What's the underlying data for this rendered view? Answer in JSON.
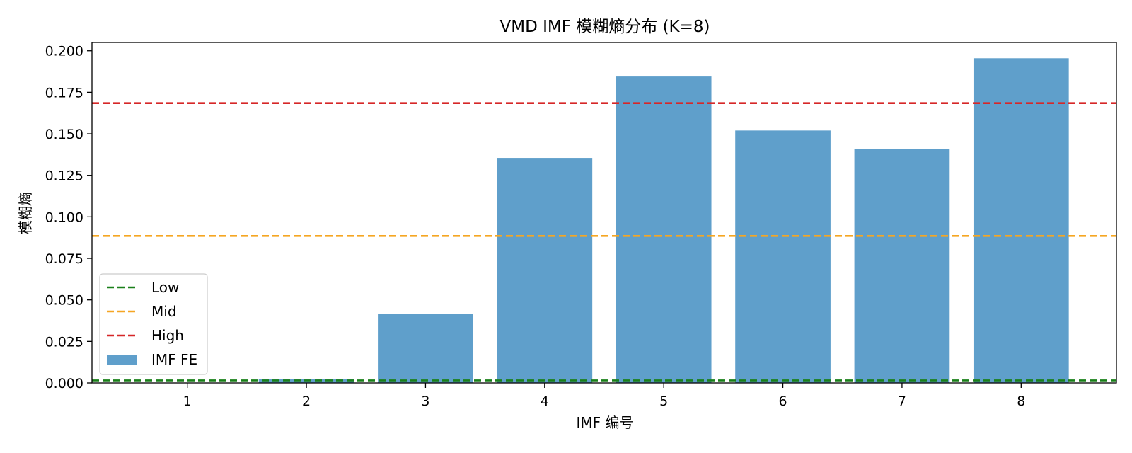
{
  "chart_data": {
    "type": "bar",
    "title": "VMD IMF 模糊熵分布 (K=8)",
    "xlabel": "IMF 编号",
    "ylabel": "模糊熵",
    "categories": [
      "1",
      "2",
      "3",
      "4",
      "5",
      "6",
      "7",
      "8"
    ],
    "values": [
      0.0,
      0.0025,
      0.0415,
      0.1355,
      0.1845,
      0.152,
      0.1408,
      0.1955
    ],
    "ylim": [
      0.0,
      0.205
    ],
    "yticks": [
      "0.000",
      "0.025",
      "0.050",
      "0.075",
      "0.100",
      "0.125",
      "0.150",
      "0.175",
      "0.200"
    ],
    "ytick_values": [
      0,
      0.025,
      0.05,
      0.075,
      0.1,
      0.125,
      0.15,
      0.175,
      0.2
    ],
    "thresholds": [
      {
        "name": "Low",
        "value": 0.0015,
        "color": "#1a801a"
      },
      {
        "name": "Mid",
        "value": 0.0885,
        "color": "#f5a623"
      },
      {
        "name": "High",
        "value": 0.1685,
        "color": "#d62728"
      }
    ],
    "bar_series": {
      "name": "IMF FE",
      "color": "#5f9fcb"
    },
    "legend_position": "lower-left",
    "grid": false
  }
}
